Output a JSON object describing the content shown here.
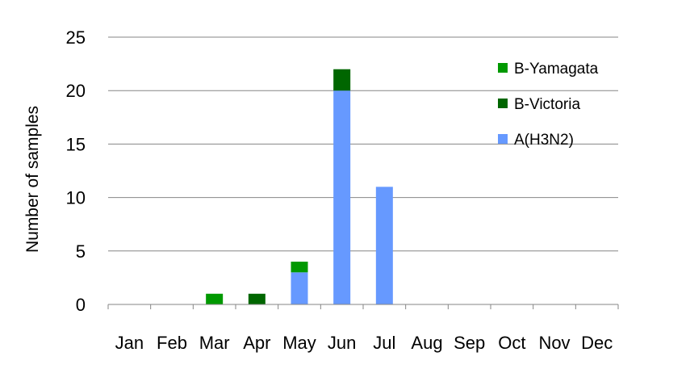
{
  "chart_data": {
    "type": "bar",
    "stacked": true,
    "title": "",
    "xlabel": "",
    "ylabel": "Number of samples",
    "ylim": [
      0,
      25
    ],
    "yticks": [
      0,
      5,
      10,
      15,
      20,
      25
    ],
    "grid": true,
    "legend_position": "top-right",
    "categories": [
      "Jan",
      "Feb",
      "Mar",
      "Apr",
      "May",
      "Jun",
      "Jul",
      "Aug",
      "Sep",
      "Oct",
      "Nov",
      "Dec"
    ],
    "series": [
      {
        "name": "A(H3N2)",
        "color": "#6699FF",
        "values": [
          0,
          0,
          0,
          0,
          3,
          20,
          11,
          0,
          0,
          0,
          0,
          0
        ]
      },
      {
        "name": "B-Victoria",
        "color": "#006600",
        "values": [
          0,
          0,
          0,
          1,
          0,
          2,
          0,
          0,
          0,
          0,
          0,
          0
        ]
      },
      {
        "name": "B-Yamagata",
        "color": "#009900",
        "values": [
          0,
          0,
          1,
          0,
          1,
          0,
          0,
          0,
          0,
          0,
          0,
          0
        ]
      }
    ],
    "legend_order": [
      "B-Yamagata",
      "B-Victoria",
      "A(H3N2)"
    ]
  }
}
